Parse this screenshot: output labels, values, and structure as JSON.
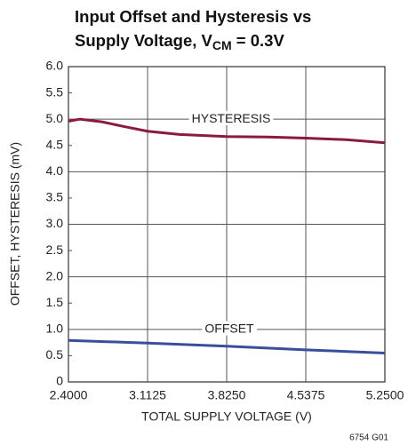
{
  "chart_data": {
    "type": "line",
    "title": [
      "Input Offset and Hysteresis vs",
      "Supply Voltage, V"
    ],
    "title_subscript": "CM",
    "title_suffix": " = 0.3V",
    "xlabel": "TOTAL SUPPLY VOLTAGE (V)",
    "ylabel": "OFFSET, HYSTERESIS (mV)",
    "footnote": "6754 G01",
    "xlim": [
      2.4,
      5.25
    ],
    "xticks": [
      {
        "value": 2.4,
        "label": "2.4000"
      },
      {
        "value": 3.1125,
        "label": "3.1125"
      },
      {
        "value": 3.825,
        "label": "3.8250"
      },
      {
        "value": 4.5375,
        "label": "4.5375"
      },
      {
        "value": 5.25,
        "label": "5.2500"
      }
    ],
    "ylim": [
      0,
      6
    ],
    "yticks": [
      0,
      0.5,
      {
        "value": 1,
        "label": "1.0"
      },
      1.5,
      {
        "value": 2,
        "label": "2.0"
      },
      2.5,
      {
        "value": 3,
        "label": "3.0"
      },
      3.5,
      {
        "value": 4,
        "label": "4.0"
      },
      4.5,
      {
        "value": 5,
        "label": "5.0"
      },
      5.5,
      {
        "value": 6,
        "label": "6.0"
      }
    ],
    "grid": true,
    "series": [
      {
        "name": "HYSTERESIS",
        "color": "#8b1a3c",
        "x": [
          2.4,
          2.5,
          2.7,
          2.9,
          3.1125,
          3.4,
          3.825,
          4.2,
          4.5375,
          4.9,
          5.25
        ],
        "values": [
          4.96,
          5.0,
          4.95,
          4.86,
          4.77,
          4.71,
          4.67,
          4.66,
          4.64,
          4.61,
          4.55
        ]
      },
      {
        "name": "OFFSET",
        "color": "#3a4f9c",
        "x": [
          2.4,
          3.1125,
          3.825,
          4.5375,
          5.25
        ],
        "values": [
          0.79,
          0.74,
          0.68,
          0.61,
          0.55
        ]
      }
    ]
  }
}
